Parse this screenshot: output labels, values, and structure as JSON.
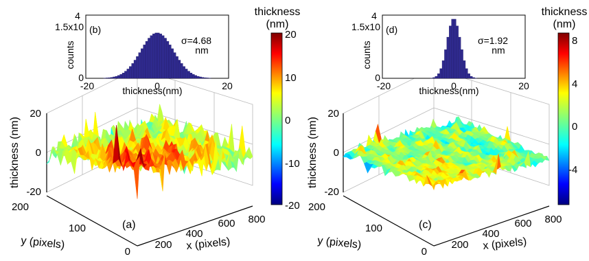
{
  "chart_data": [
    {
      "panel": "a",
      "type": "surface3d",
      "panel_label": "(a)",
      "zlabel": "thickness (nm)",
      "xlabel": "x (pixels)",
      "ylabel": "y (pixels)",
      "z_ticks": [
        "20",
        "0",
        "-20"
      ],
      "x_ticks": [
        "200",
        "400",
        "600",
        "800"
      ],
      "y_ticks": [
        "200",
        "100",
        "0"
      ],
      "xlim": [
        0,
        800
      ],
      "ylim": [
        0,
        200
      ],
      "zlim": [
        -25,
        25
      ],
      "colormap": "jet",
      "colorbar": {
        "title_line1": "thickness",
        "title_line2": "(nm)",
        "ticks": [
          "20",
          "10",
          "0",
          "-10",
          "-20"
        ],
        "range": [
          -22,
          22
        ]
      },
      "inset": {
        "panel_label": "(b)",
        "type": "histogram",
        "ylabel": "counts",
        "xlabel": "thickness(nm)",
        "y_top_label": "1.5x10",
        "y_top_exponent": "4",
        "y_bottom_label": "0",
        "x_ticks": [
          "-20",
          "0",
          "20"
        ],
        "xlim": [
          -20,
          20
        ],
        "sigma_value": "σ=4.68",
        "sigma_unit": "nm",
        "sigma": 4.68,
        "bar_color": "#2f2a8e"
      }
    },
    {
      "panel": "c",
      "type": "surface3d",
      "panel_label": "(c)",
      "zlabel": "thickness (nm)",
      "xlabel": "x (pixels)",
      "ylabel": "y (pixels)",
      "z_ticks": [
        "20",
        "0",
        "-20"
      ],
      "x_ticks": [
        "200",
        "400",
        "600",
        "800"
      ],
      "y_ticks": [
        "200",
        "100",
        "0"
      ],
      "xlim": [
        0,
        800
      ],
      "ylim": [
        0,
        200
      ],
      "zlim": [
        -25,
        25
      ],
      "colormap": "jet",
      "colorbar": {
        "title_line1": "thickness",
        "title_line2": "(nm)",
        "ticks": [
          "8",
          "4",
          "0",
          "-4"
        ],
        "range": [
          -7,
          9
        ]
      },
      "inset": {
        "panel_label": "(d)",
        "type": "histogram",
        "ylabel": "counts",
        "xlabel": "thickness(nm)",
        "y_top_label": "1.5x10",
        "y_top_exponent": "4",
        "y_bottom_label": "0",
        "x_ticks": [
          "-20",
          "0",
          "20"
        ],
        "xlim": [
          -20,
          20
        ],
        "sigma_value": "σ=1.92",
        "sigma_unit": "nm",
        "sigma": 1.92,
        "bar_color": "#2f2a8e"
      }
    }
  ]
}
